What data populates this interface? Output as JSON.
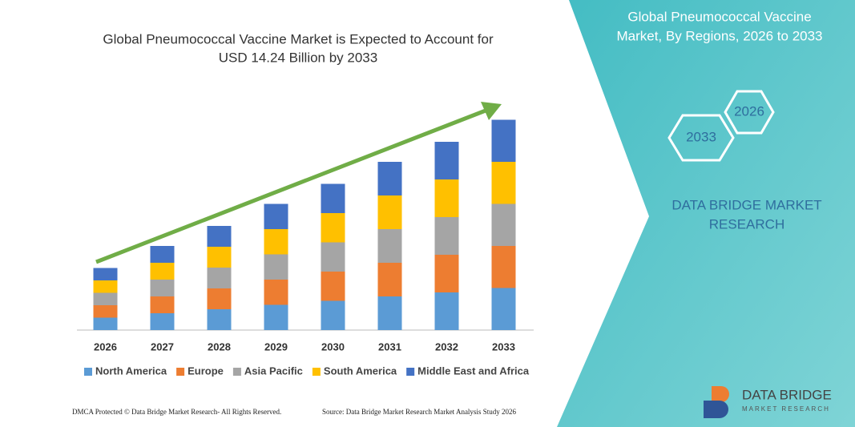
{
  "chart_data": {
    "type": "bar",
    "stacked": true,
    "title": [
      "Global Pneumococcal Vaccine Market is Expected to Account for",
      "USD 14.24 Billion by 2033"
    ],
    "categories": [
      "2026",
      "2027",
      "2028",
      "2029",
      "2030",
      "2031",
      "2032",
      "2033"
    ],
    "series": [
      {
        "name": "North America",
        "color": "#5b9bd5",
        "values": [
          15.5,
          21,
          26,
          31.5,
          36.5,
          42,
          47,
          52.5
        ]
      },
      {
        "name": "Europe",
        "color": "#ed7d31",
        "values": [
          15.5,
          21,
          26,
          31.5,
          36.5,
          42,
          47,
          52.5
        ]
      },
      {
        "name": "Asia Pacific",
        "color": "#a5a5a5",
        "values": [
          15.5,
          21,
          26,
          31.5,
          36.5,
          42,
          47,
          52.5
        ]
      },
      {
        "name": "South America",
        "color": "#ffc000",
        "values": [
          15.5,
          21,
          26,
          31.5,
          36.5,
          42,
          47,
          52.5
        ]
      },
      {
        "name": "Middle East and Africa",
        "color": "#4472c4",
        "values": [
          15.5,
          21,
          26,
          31.5,
          36.5,
          42,
          47,
          52.5
        ]
      }
    ],
    "ylim": [
      0,
      300
    ]
  },
  "panel": {
    "title": [
      "Global Pneumococcal Vaccine",
      "Market, By Regions, 2026 to 2033"
    ],
    "hex_labels": [
      "2026",
      "2033"
    ],
    "brand": [
      "DATA BRIDGE MARKET",
      "RESEARCH"
    ]
  },
  "logo": {
    "name": "DATA BRIDGE",
    "tagline": "MARKET RESEARCH"
  },
  "footer": {
    "left": "DMCA Protected © Data Bridge Market Research- All Rights Reserved.",
    "right": "Source: Data Bridge Market Research  Market Analysis Study 2026"
  }
}
